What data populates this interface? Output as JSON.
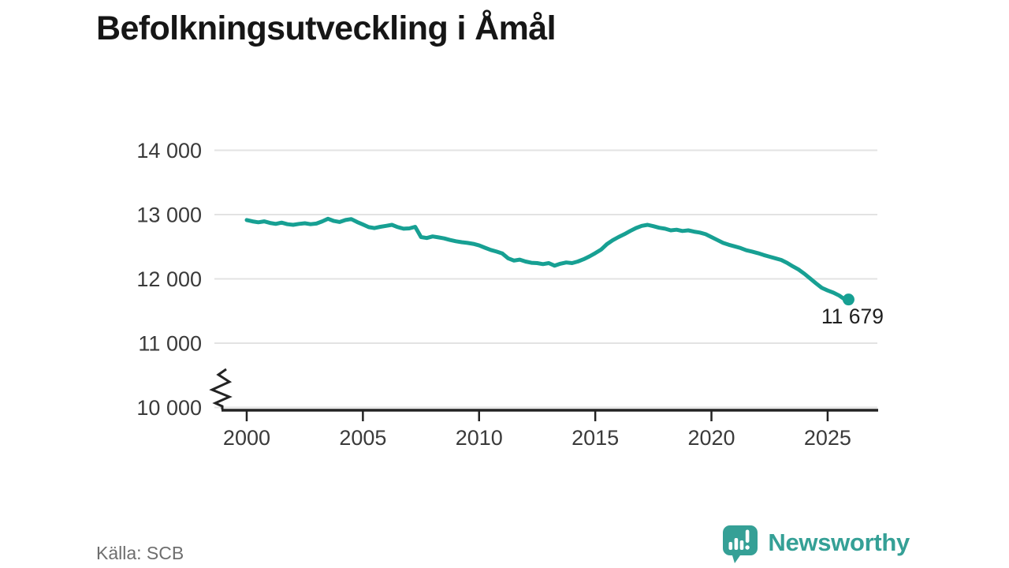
{
  "chart_data": {
    "type": "line",
    "title": "Befolkningsutveckling i Åmål",
    "xlabel": "",
    "ylabel": "",
    "ylim": [
      10000,
      14000
    ],
    "y_axis_break": true,
    "grid": "horizontal",
    "legend": "none",
    "line_color": "#17a093",
    "grid_color": "#e3e3e3",
    "axis_color": "#232323",
    "tick_label_color": "#3a3a3a",
    "yticks": [
      {
        "value": 14000,
        "label": "14 000"
      },
      {
        "value": 13000,
        "label": "13 000"
      },
      {
        "value": 12000,
        "label": "12 000"
      },
      {
        "value": 11000,
        "label": "11 000"
      },
      {
        "value": 10000,
        "label": "10 000"
      }
    ],
    "xticks": [
      {
        "value": 2000,
        "label": "2000"
      },
      {
        "value": 2005,
        "label": "2005"
      },
      {
        "value": 2010,
        "label": "2010"
      },
      {
        "value": 2015,
        "label": "2015"
      },
      {
        "value": 2020,
        "label": "2020"
      },
      {
        "value": 2025,
        "label": "2025"
      }
    ],
    "x": [
      2000,
      2000.25,
      2000.5,
      2000.75,
      2001,
      2001.25,
      2001.5,
      2001.75,
      2002,
      2002.25,
      2002.5,
      2002.75,
      2003,
      2003.25,
      2003.5,
      2003.75,
      2004,
      2004.25,
      2004.5,
      2004.75,
      2005,
      2005.25,
      2005.5,
      2005.75,
      2006,
      2006.25,
      2006.5,
      2006.75,
      2007,
      2007.25,
      2007.5,
      2007.75,
      2008,
      2008.25,
      2008.5,
      2008.75,
      2009,
      2009.25,
      2009.5,
      2009.75,
      2010,
      2010.25,
      2010.5,
      2010.75,
      2011,
      2011.25,
      2011.5,
      2011.75,
      2012,
      2012.25,
      2012.5,
      2012.75,
      2013,
      2013.25,
      2013.5,
      2013.75,
      2014,
      2014.25,
      2014.5,
      2014.75,
      2015,
      2015.25,
      2015.5,
      2015.75,
      2016,
      2016.25,
      2016.5,
      2016.75,
      2017,
      2017.25,
      2017.5,
      2017.75,
      2018,
      2018.25,
      2018.5,
      2018.75,
      2019,
      2019.25,
      2019.5,
      2019.75,
      2020,
      2020.25,
      2020.5,
      2020.75,
      2021,
      2021.25,
      2021.5,
      2021.75,
      2022,
      2022.25,
      2022.5,
      2022.75,
      2023,
      2023.25,
      2023.5,
      2023.75,
      2024,
      2024.25,
      2024.5,
      2024.75,
      2025,
      2025.25,
      2025.5,
      2025.7,
      2025.9
    ],
    "values": [
      12915,
      12895,
      12880,
      12895,
      12870,
      12855,
      12875,
      12850,
      12840,
      12855,
      12865,
      12850,
      12860,
      12895,
      12935,
      12900,
      12885,
      12915,
      12930,
      12885,
      12845,
      12805,
      12790,
      12810,
      12825,
      12840,
      12805,
      12780,
      12785,
      12810,
      12650,
      12635,
      12660,
      12645,
      12630,
      12605,
      12585,
      12570,
      12560,
      12545,
      12520,
      12485,
      12450,
      12425,
      12395,
      12320,
      12285,
      12300,
      12270,
      12250,
      12245,
      12230,
      12245,
      12205,
      12235,
      12255,
      12245,
      12270,
      12305,
      12350,
      12400,
      12455,
      12540,
      12600,
      12650,
      12695,
      12745,
      12790,
      12825,
      12840,
      12820,
      12795,
      12780,
      12755,
      12765,
      12745,
      12755,
      12735,
      12720,
      12695,
      12650,
      12605,
      12560,
      12530,
      12505,
      12480,
      12445,
      12425,
      12400,
      12370,
      12345,
      12320,
      12295,
      12250,
      12195,
      12145,
      12080,
      12005,
      11930,
      11860,
      11820,
      11785,
      11740,
      11690,
      11679
    ],
    "end_label": "11 679",
    "last_point": {
      "x": 2025.9,
      "value": 11679
    }
  },
  "source": {
    "label": "Källa: SCB"
  },
  "branding": {
    "name": "Newsworthy",
    "color": "#35a096"
  }
}
